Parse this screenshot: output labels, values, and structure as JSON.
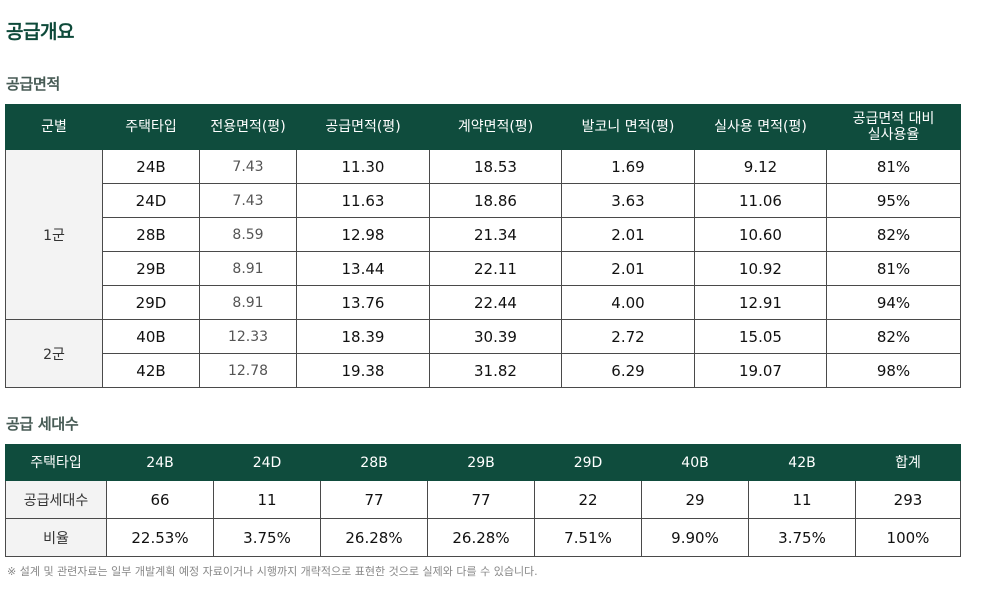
{
  "page_title": "공급개요",
  "area_section": {
    "title": "공급면적",
    "headers": [
      "군별",
      "주택타입",
      "전용면적(평)",
      "공급면적(평)",
      "계약면적(평)",
      "발코니 면적(평)",
      "실사용 면적(평)",
      "공급면적 대비\n실사용율"
    ],
    "groups": [
      {
        "name": "1군",
        "rows": [
          [
            "24B",
            "7.43",
            "11.30",
            "18.53",
            "1.69",
            "9.12",
            "81%"
          ],
          [
            "24D",
            "7.43",
            "11.63",
            "18.86",
            "3.63",
            "11.06",
            "95%"
          ],
          [
            "28B",
            "8.59",
            "12.98",
            "21.34",
            "2.01",
            "10.60",
            "82%"
          ],
          [
            "29B",
            "8.91",
            "13.44",
            "22.11",
            "2.01",
            "10.92",
            "81%"
          ],
          [
            "29D",
            "8.91",
            "13.76",
            "22.44",
            "4.00",
            "12.91",
            "94%"
          ]
        ]
      },
      {
        "name": "2군",
        "rows": [
          [
            "40B",
            "12.33",
            "18.39",
            "30.39",
            "2.72",
            "15.05",
            "82%"
          ],
          [
            "42B",
            "12.78",
            "19.38",
            "31.82",
            "6.29",
            "19.07",
            "98%"
          ]
        ]
      }
    ]
  },
  "unit_section": {
    "title": "공급 세대수",
    "headers": [
      "주택타입",
      "24B",
      "24D",
      "28B",
      "29B",
      "29D",
      "40B",
      "42B",
      "합계"
    ],
    "rows": [
      [
        "공급세대수",
        "66",
        "11",
        "77",
        "77",
        "22",
        "29",
        "11",
        "293"
      ],
      [
        "비율",
        "22.53%",
        "3.75%",
        "26.28%",
        "26.28%",
        "7.51%",
        "9.90%",
        "3.75%",
        "100%"
      ]
    ]
  },
  "footnote": "※ 설계 및 관련자료는 일부 개발계획 예정 자료이거나 시행까지 개략적으로 표현한 것으로 실제와 다를 수 있습니다."
}
